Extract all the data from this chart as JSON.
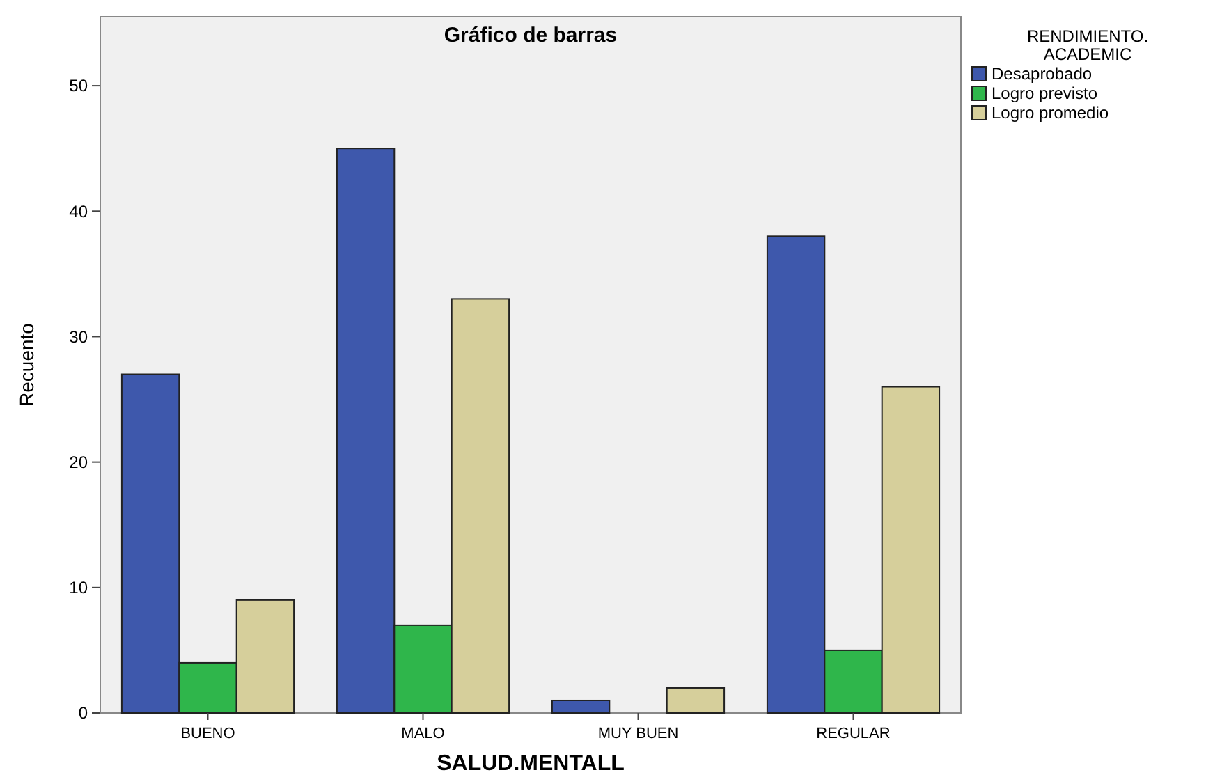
{
  "chart_data": {
    "type": "bar",
    "title": "Gráfico de barras",
    "xlabel": "SALUD.MENTALL",
    "ylabel": "Recuento",
    "legend_title": "RENDIMIENTO.ACADEMIC",
    "legend": "top right",
    "categories": [
      "BUENO",
      "MALO",
      "MUY BUEN",
      "REGULAR"
    ],
    "series": [
      {
        "name": "Desaprobado",
        "color": "#3e58ac",
        "values": [
          27,
          45,
          1,
          38
        ]
      },
      {
        "name": "Logro previsto",
        "color": "#2fb64b",
        "values": [
          4,
          7,
          null,
          5
        ]
      },
      {
        "name": "Logro promedio",
        "color": "#d6cf9b",
        "values": [
          9,
          33,
          2,
          26
        ]
      }
    ],
    "ylim": [
      0,
      55.5
    ],
    "yticks": [
      0,
      10,
      20,
      30,
      40,
      50
    ],
    "grid": false
  }
}
